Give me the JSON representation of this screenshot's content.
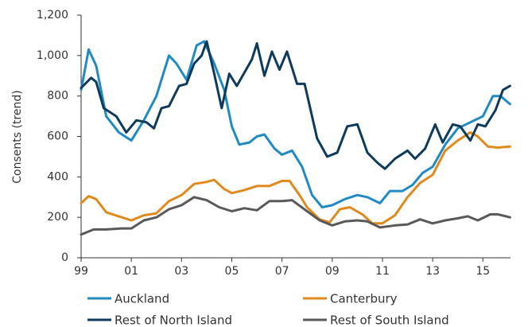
{
  "chart_data": {
    "type": "line",
    "y_label": "Consents (trend)",
    "xlim": [
      1999,
      2016.1
    ],
    "ylim": [
      0,
      1200
    ],
    "xticks": [
      {
        "value": 1999,
        "label": "99"
      },
      {
        "value": 2001,
        "label": "01"
      },
      {
        "value": 2003,
        "label": "03"
      },
      {
        "value": 2005,
        "label": "05"
      },
      {
        "value": 2007,
        "label": "07"
      },
      {
        "value": 2009,
        "label": "09"
      },
      {
        "value": 2011,
        "label": "11"
      },
      {
        "value": 2013,
        "label": "13"
      },
      {
        "value": 2015,
        "label": "15"
      }
    ],
    "yticks": [
      0,
      200,
      400,
      600,
      800,
      {
        "value": 1000,
        "label": "1,000"
      },
      {
        "value": 1200,
        "label": "1,200"
      }
    ],
    "grid": false,
    "series": [
      {
        "name": "Auckland",
        "color": "#1f8ac4",
        "x": [
          1999,
          1999.3,
          1999.6,
          2000,
          2000.5,
          2001,
          2001.5,
          2002,
          2002.5,
          2002.8,
          2003.2,
          2003.6,
          2003.9,
          2004.3,
          2004.7,
          2005,
          2005.3,
          2005.7,
          2006,
          2006.3,
          2006.7,
          2007,
          2007.4,
          2007.8,
          2008.2,
          2008.6,
          2009,
          2009.5,
          2010,
          2010.4,
          2010.9,
          2011.3,
          2011.8,
          2012.2,
          2012.6,
          2013,
          2013.5,
          2014,
          2014.5,
          2015,
          2015.4,
          2015.7,
          2016.08
        ],
        "values": [
          830,
          1030,
          950,
          700,
          620,
          580,
          680,
          800,
          1000,
          960,
          880,
          1050,
          1070,
          960,
          830,
          650,
          560,
          570,
          600,
          610,
          540,
          510,
          530,
          450,
          310,
          250,
          260,
          290,
          310,
          300,
          270,
          330,
          330,
          360,
          420,
          450,
          560,
          640,
          670,
          700,
          800,
          800,
          760
        ]
      },
      {
        "name": "Canterbury",
        "color": "#e0891c",
        "x": [
          1999,
          1999.3,
          1999.6,
          2000,
          2000.5,
          2001,
          2001.5,
          2002,
          2002.5,
          2003,
          2003.5,
          2004,
          2004.3,
          2004.7,
          2005,
          2005.5,
          2006,
          2006.5,
          2007,
          2007.3,
          2007.7,
          2008,
          2008.5,
          2008.9,
          2009.3,
          2009.7,
          2010.2,
          2010.6,
          2011,
          2011.5,
          2012,
          2012.5,
          2013,
          2013.5,
          2014,
          2014.5,
          2014.8,
          2015.2,
          2015.6,
          2016.08
        ],
        "values": [
          270,
          305,
          290,
          225,
          205,
          185,
          210,
          220,
          280,
          310,
          365,
          375,
          385,
          340,
          320,
          335,
          355,
          355,
          380,
          380,
          310,
          250,
          190,
          175,
          240,
          250,
          215,
          170,
          170,
          210,
          300,
          370,
          410,
          530,
          580,
          620,
          600,
          550,
          545,
          550
        ]
      },
      {
        "name": "Rest of North Island",
        "color": "#0e3a5c",
        "x": [
          1999,
          1999.4,
          1999.6,
          1999.9,
          2000.4,
          2000.8,
          2001.2,
          2001.6,
          2001.9,
          2002.2,
          2002.5,
          2002.9,
          2003.2,
          2003.5,
          2003.8,
          2004,
          2004.3,
          2004.6,
          2004.9,
          2005.2,
          2005.8,
          2006,
          2006.3,
          2006.6,
          2006.9,
          2007.2,
          2007.6,
          2007.9,
          2008.4,
          2008.8,
          2009.2,
          2009.6,
          2010,
          2010.4,
          2010.8,
          2011.1,
          2011.5,
          2012,
          2012.3,
          2012.7,
          2013.1,
          2013.4,
          2013.8,
          2014.1,
          2014.5,
          2014.8,
          2015.1,
          2015.5,
          2015.8,
          2016.08
        ],
        "values": [
          840,
          890,
          870,
          740,
          700,
          620,
          680,
          670,
          640,
          740,
          750,
          850,
          860,
          960,
          1000,
          1070,
          910,
          740,
          910,
          850,
          980,
          1060,
          900,
          1020,
          930,
          1020,
          860,
          860,
          590,
          500,
          520,
          650,
          660,
          520,
          470,
          440,
          490,
          530,
          490,
          540,
          660,
          570,
          660,
          650,
          580,
          660,
          650,
          730,
          830,
          850
        ]
      },
      {
        "name": "Rest of South Island",
        "color": "#595959",
        "x": [
          1999,
          1999.5,
          2000,
          2000.6,
          2001,
          2001.5,
          2002,
          2002.5,
          2003,
          2003.5,
          2004,
          2004.5,
          2005,
          2005.5,
          2006,
          2006.5,
          2007,
          2007.4,
          2008,
          2008.5,
          2009,
          2009.5,
          2010,
          2010.4,
          2010.9,
          2011.5,
          2012,
          2012.5,
          2013,
          2013.5,
          2014,
          2014.4,
          2014.8,
          2015.3,
          2015.6,
          2016.08
        ],
        "values": [
          115,
          140,
          140,
          145,
          145,
          185,
          200,
          240,
          260,
          300,
          285,
          250,
          230,
          245,
          235,
          280,
          280,
          285,
          230,
          185,
          160,
          180,
          185,
          180,
          150,
          160,
          165,
          190,
          170,
          185,
          195,
          205,
          185,
          215,
          215,
          200
        ]
      }
    ]
  }
}
